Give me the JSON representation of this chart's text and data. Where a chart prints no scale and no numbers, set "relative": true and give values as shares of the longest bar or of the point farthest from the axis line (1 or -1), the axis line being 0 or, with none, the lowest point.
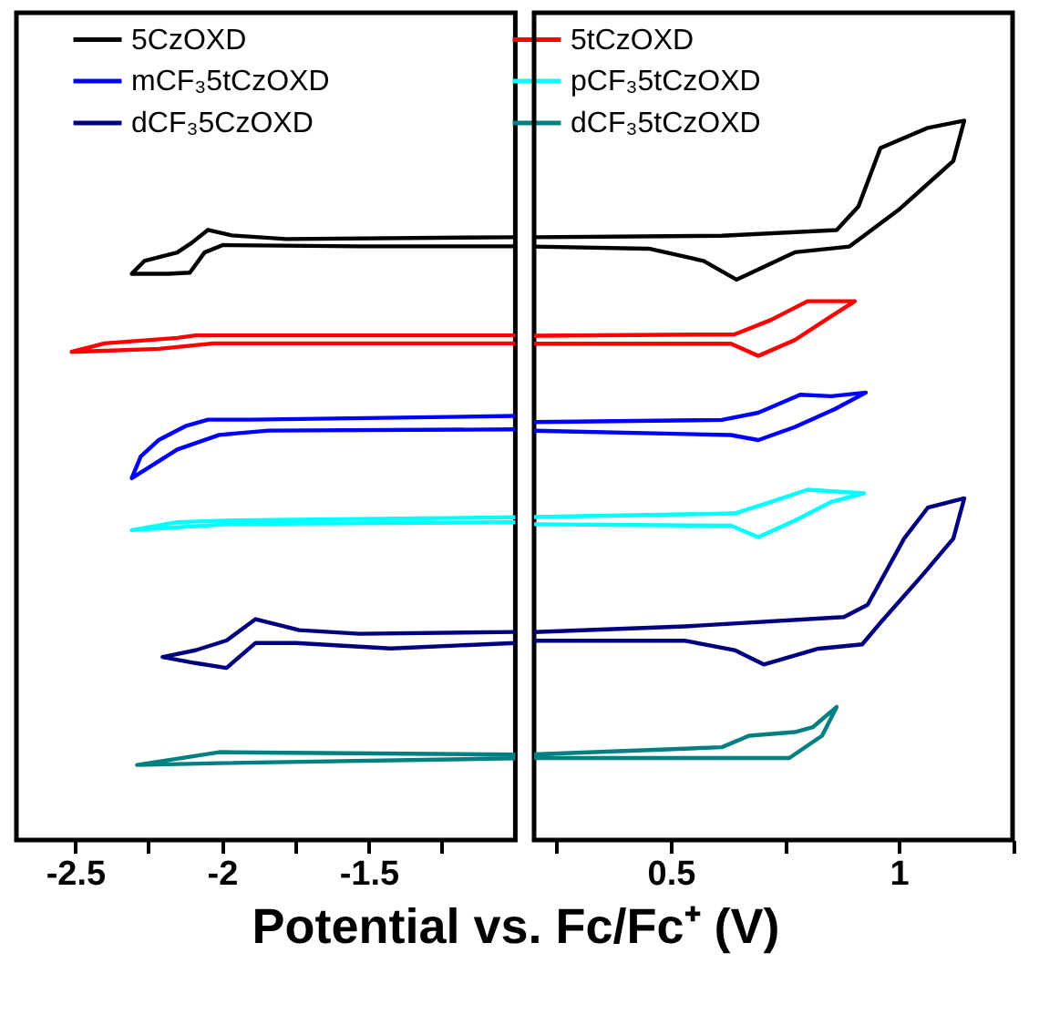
{
  "chart_data": [
    {
      "type": "line",
      "xlabel": "Potential vs. Fc/Fc⁺ (V)",
      "relative": true,
      "legend": "top",
      "tick_labels": "x",
      "xlim": [
        -2.7,
        -1.0
      ],
      "xticks": [
        -2.5,
        {
          "value": -2.25,
          "label": null
        },
        -2.0,
        {
          "value": -1.75,
          "label": null
        },
        -1.5,
        {
          "value": -1.25,
          "label": null
        }
      ],
      "series": [
        {
          "name": "5CzOXD",
          "color": "#000000",
          "x": [
            -1.0,
            -1.531,
            -1.997,
            -2.059,
            -2.109,
            -2.183,
            -2.307,
            -2.264,
            -2.152,
            -2.102,
            -2.047,
            -1.966,
            -1.78,
            -1.0
          ],
          "values": [
            0.973,
            0.973,
            0.975,
            0.963,
            0.93,
            0.928,
            0.928,
            0.949,
            0.963,
            0.979,
            1.0,
            0.991,
            0.985,
            0.988
          ]
        },
        {
          "name": "5tCzOXD",
          "color": "#ff0000",
          "x": [
            -1.0,
            -2.028,
            -2.214,
            -2.512,
            -2.4,
            -2.152,
            -2.09,
            -1.0
          ],
          "values": [
            0.814,
            0.814,
            0.805,
            0.8,
            0.814,
            0.823,
            0.827,
            0.827
          ]
        },
        {
          "name": "mCF₃5tCzOXD",
          "color": "#0000ff",
          "x": [
            -1.0,
            -1.842,
            -2.009,
            -2.152,
            -2.307,
            -2.276,
            -2.214,
            -2.121,
            -2.047,
            -1.904,
            -1.0
          ],
          "values": [
            0.673,
            0.671,
            0.664,
            0.64,
            0.593,
            0.629,
            0.656,
            0.679,
            0.689,
            0.689,
            0.695
          ]
        },
        {
          "name": "pCF₃5tCzOXD",
          "color": "#00ffff",
          "x": [
            -1.0,
            -1.966,
            -2.307,
            -2.152,
            -1.966,
            -1.0
          ],
          "values": [
            0.521,
            0.518,
            0.508,
            0.521,
            0.524,
            0.529
          ]
        },
        {
          "name": "dCF₃5CzOXD",
          "color": "#000080",
          "x": [
            -1.0,
            -1.425,
            -1.748,
            -1.885,
            -1.984,
            -2.09,
            -2.202,
            -2.09,
            -1.984,
            -1.885,
            -1.736,
            -1.531,
            -1.0
          ],
          "values": [
            0.323,
            0.314,
            0.323,
            0.323,
            0.282,
            0.29,
            0.3,
            0.311,
            0.327,
            0.362,
            0.344,
            0.338,
            0.341
          ]
        },
        {
          "name": "dCF₃5tCzOXD",
          "color": "#008080",
          "x": [
            -1.0,
            -2.009,
            -2.289,
            -2.009,
            -1.0
          ],
          "values": [
            0.134,
            0.126,
            0.123,
            0.144,
            0.14
          ]
        }
      ]
    },
    {
      "type": "line",
      "relative": true,
      "tick_labels": "x",
      "xlim": [
        0.2,
        1.25
      ],
      "xticks": [
        {
          "value": 0.25,
          "label": null
        },
        0.5,
        {
          "value": 0.75,
          "label": null
        },
        1.0,
        {
          "value": 1.25,
          "label": null
        }
      ],
      "series": [
        {
          "color": "#000000",
          "x": [
            0.2,
            0.612,
            0.864,
            0.912,
            0.96,
            1.064,
            1.144,
            1.12,
            1.0,
            0.892,
            0.772,
            0.644,
            0.572,
            0.452,
            0.2
          ],
          "values": [
            0.838,
            0.84,
            0.848,
            0.881,
            0.962,
            0.99,
            1.0,
            0.944,
            0.876,
            0.825,
            0.817,
            0.779,
            0.805,
            0.822,
            0.825
          ]
        },
        {
          "color": "#ff0000",
          "x": [
            0.2,
            0.64,
            0.72,
            0.8,
            0.852,
            0.904,
            0.852,
            0.772,
            0.692,
            0.632,
            0.2
          ],
          "values": [
            0.701,
            0.703,
            0.723,
            0.749,
            0.749,
            0.749,
            0.728,
            0.695,
            0.673,
            0.69,
            0.69
          ]
        },
        {
          "color": "#0000ff",
          "x": [
            0.2,
            0.612,
            0.692,
            0.784,
            0.852,
            0.928,
            0.86,
            0.772,
            0.692,
            0.632,
            0.2
          ],
          "values": [
            0.581,
            0.584,
            0.594,
            0.619,
            0.617,
            0.622,
            0.599,
            0.574,
            0.556,
            0.563,
            0.569
          ]
        },
        {
          "color": "#00ffff",
          "x": [
            0.2,
            0.64,
            0.72,
            0.8,
            0.924,
            0.852,
            0.772,
            0.692,
            0.632,
            0.2
          ],
          "values": [
            0.449,
            0.454,
            0.47,
            0.487,
            0.482,
            0.47,
            0.444,
            0.421,
            0.437,
            0.439
          ]
        },
        {
          "color": "#000080",
          "x": [
            0.2,
            0.532,
            0.88,
            0.932,
            1.012,
            1.064,
            1.144,
            1.12,
            1.052,
            0.96,
            0.92,
            0.824,
            0.704,
            0.64,
            0.532,
            0.2
          ],
          "values": [
            0.289,
            0.297,
            0.31,
            0.327,
            0.419,
            0.462,
            0.475,
            0.419,
            0.368,
            0.302,
            0.272,
            0.266,
            0.244,
            0.264,
            0.277,
            0.277
          ]
        },
        {
          "color": "#008080",
          "x": [
            0.2,
            0.612,
            0.672,
            0.772,
            0.812,
            0.864,
            0.832,
            0.76,
            0.692,
            0.2
          ],
          "values": [
            0.119,
            0.129,
            0.145,
            0.15,
            0.157,
            0.185,
            0.145,
            0.114,
            0.114,
            0.114
          ]
        }
      ]
    }
  ]
}
